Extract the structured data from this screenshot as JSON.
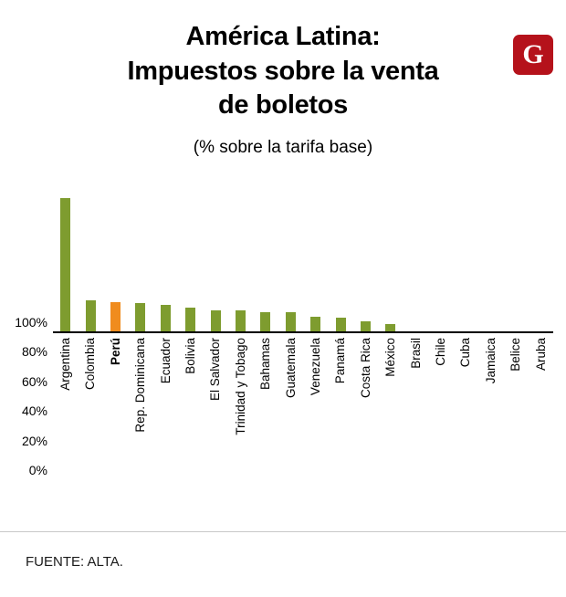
{
  "logo": {
    "letter": "G",
    "color": "#b5121b"
  },
  "chart_data": {
    "type": "bar",
    "title": "América Latina:\nImpuestos sobre la venta\nde boletos",
    "subtitle": "(% sobre la tarifa base)",
    "categories": [
      "Argentina",
      "Colombia",
      "Perú",
      "Rep. Dominicana",
      "Ecuador",
      "Bolivia",
      "El Salvador",
      "Trinidad y Tobago",
      "Bahamas",
      "Guatemala",
      "Venezuela",
      "Panamá",
      "Costa Rica",
      "México",
      "Brasil",
      "Chile",
      "Cuba",
      "Jamaica",
      "Belice",
      "Aruba"
    ],
    "values": [
      90,
      21,
      20,
      19,
      18,
      16,
      14,
      14,
      13,
      13,
      10,
      9,
      7,
      5,
      0,
      0,
      0,
      0,
      0,
      0
    ],
    "highlight_index": 2,
    "highlight_category": "Perú",
    "bar_color": "#7e9c2f",
    "highlight_color": "#f08c1e",
    "ylim": [
      0,
      100
    ],
    "yticks": [
      "0%",
      "20%",
      "40%",
      "60%",
      "80%",
      "100%"
    ],
    "grid": false,
    "legend": "none"
  },
  "footer": {
    "source": "FUENTE: ALTA."
  }
}
